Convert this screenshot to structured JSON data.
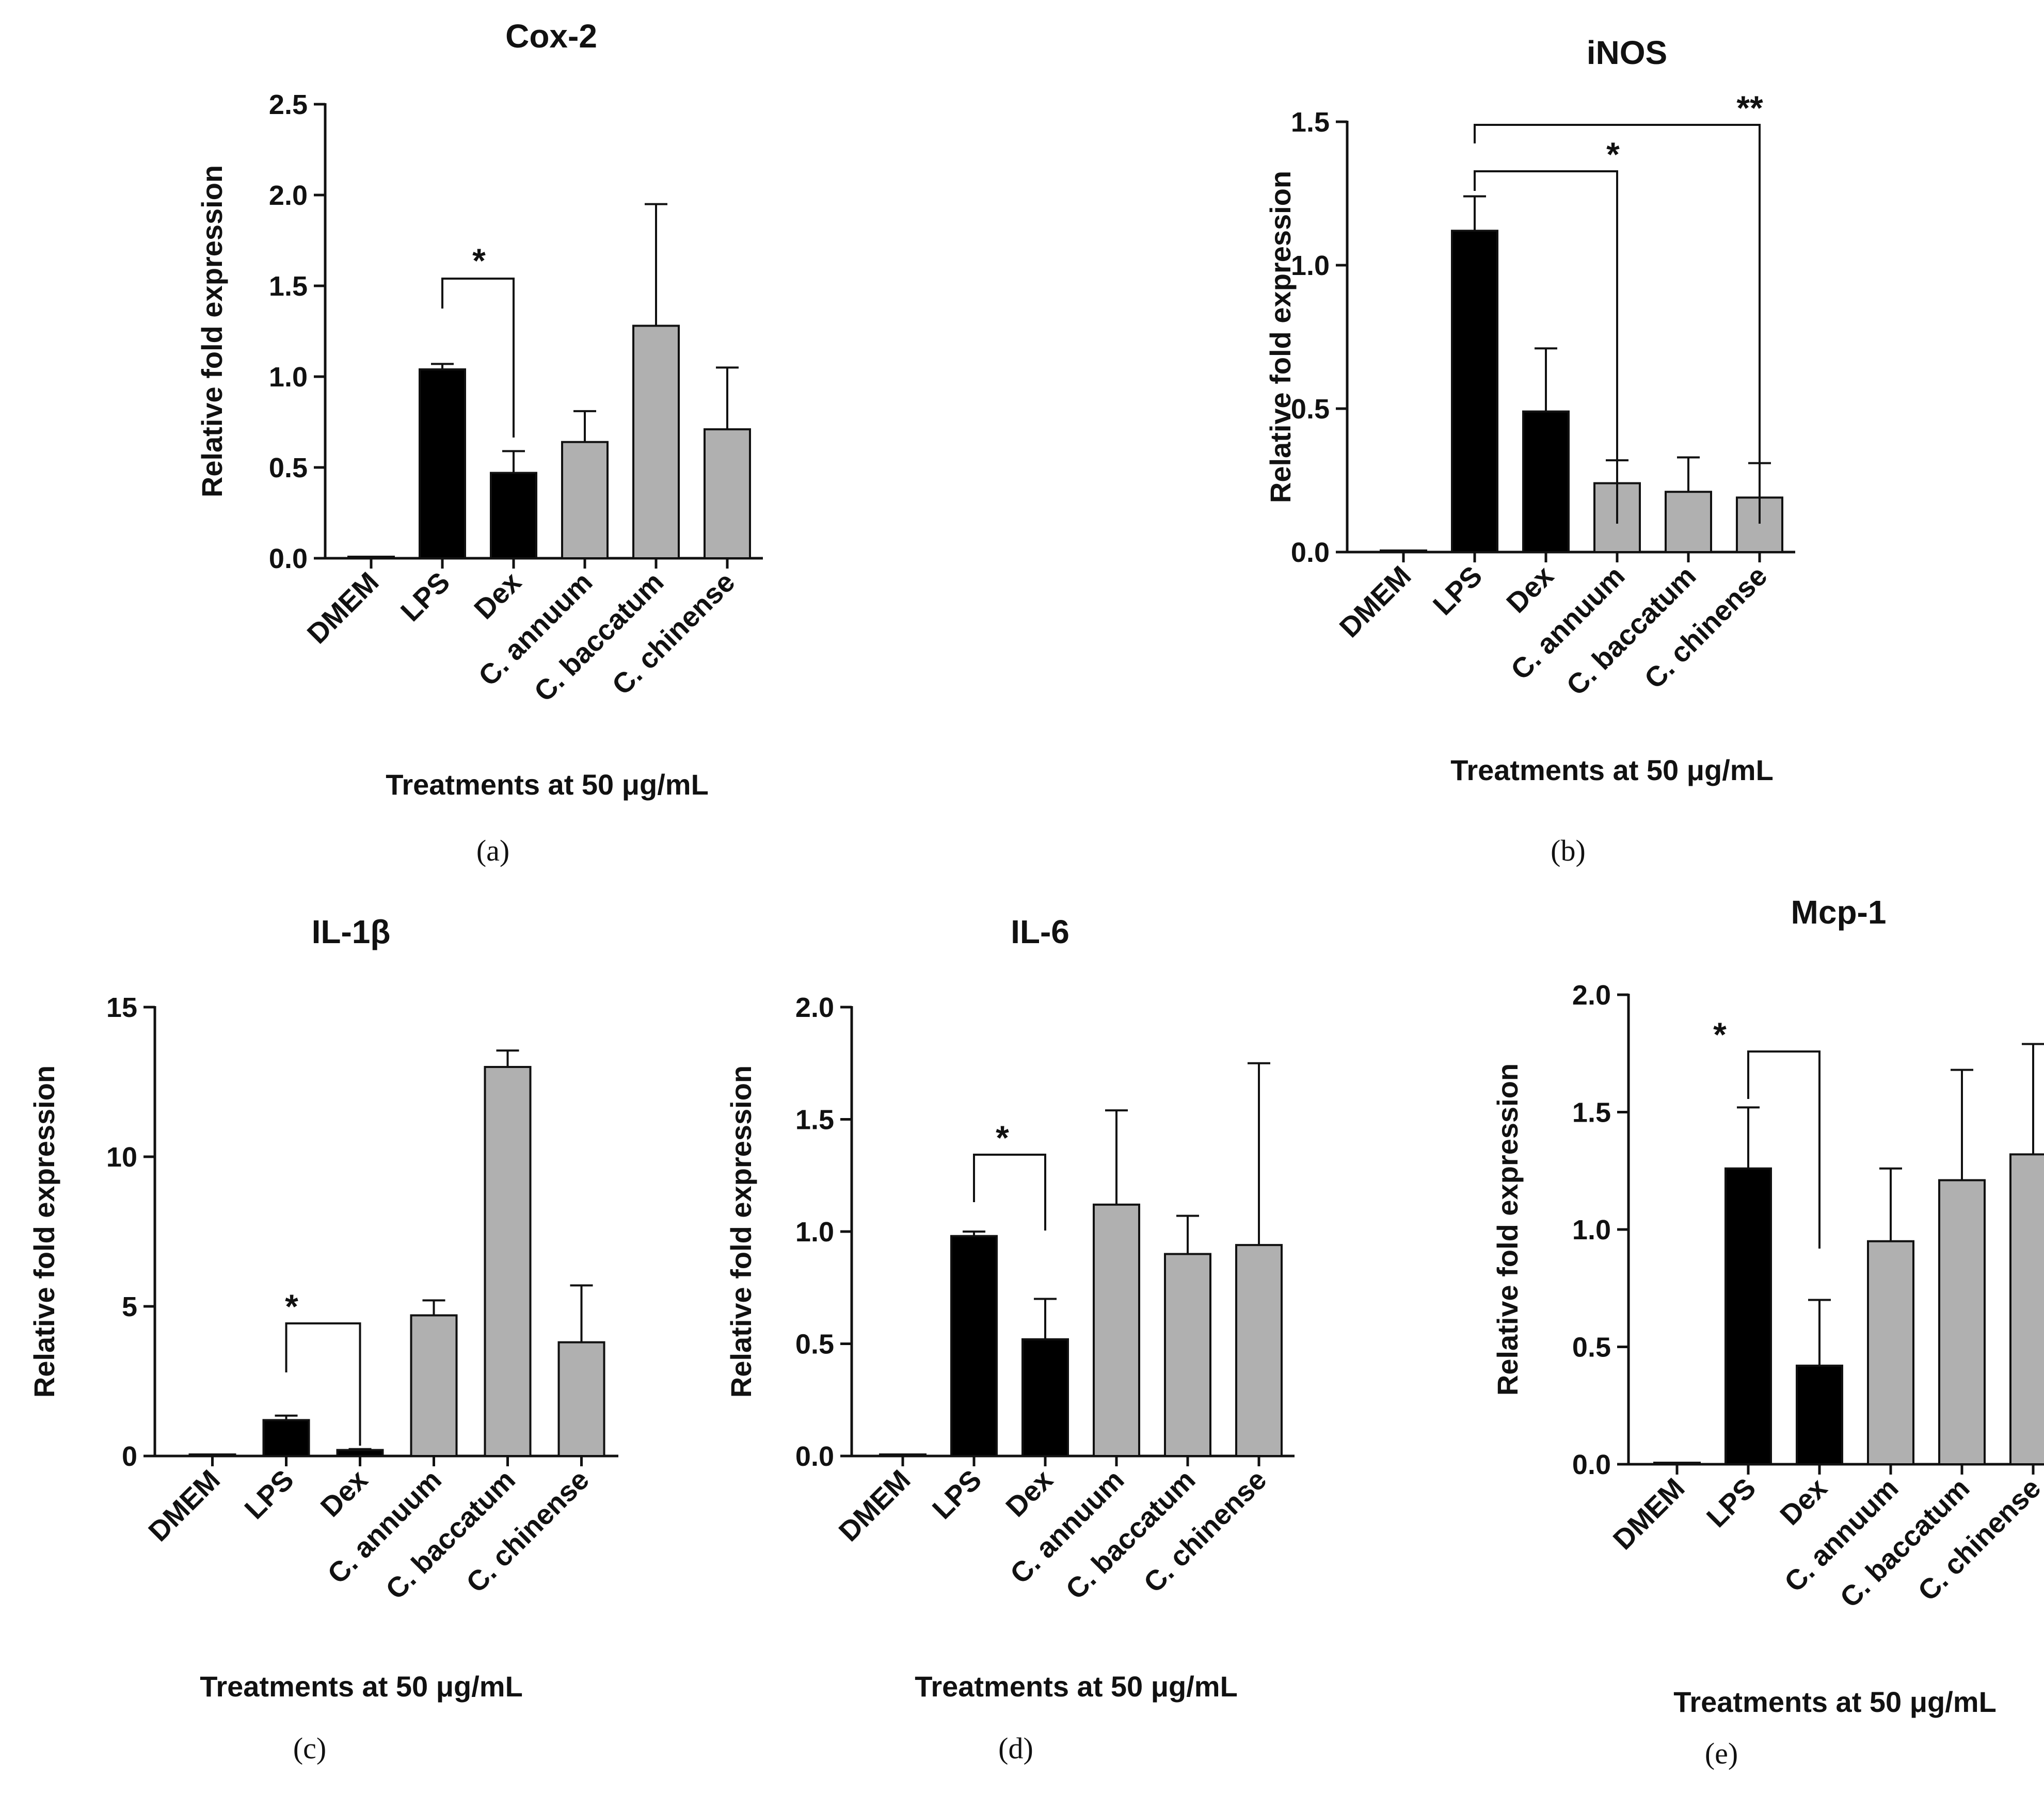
{
  "chart_data": [
    {
      "panel": "(a)",
      "type": "bar",
      "title": "Cox-2",
      "ylabel": "Relative fold expression",
      "xlabel": "Treatments at 50 μg/mL",
      "ylim": [
        0,
        2.5
      ],
      "yticks": [
        "0.0",
        "0.5",
        "1.0",
        "1.5",
        "2.0",
        "2.5"
      ],
      "categories": [
        "DMEM",
        "LPS",
        "Dex",
        "C. annuum",
        "C. baccatum",
        "C. chinense"
      ],
      "values": [
        0,
        1.04,
        0.47,
        0.64,
        1.28,
        0.71
      ],
      "errors": [
        0,
        0.03,
        0.12,
        0.17,
        0.67,
        0.34
      ],
      "significance": [
        {
          "label": "*"
        }
      ]
    },
    {
      "panel": "(b)",
      "type": "bar",
      "title": "iNOS",
      "ylabel": "Relative fold expression",
      "xlabel": "Treatments at 50 μg/mL",
      "ylim": [
        0,
        1.5
      ],
      "yticks": [
        "0.0",
        "0.5",
        "1.0",
        "1.5"
      ],
      "categories": [
        "DMEM",
        "LPS",
        "Dex",
        "C. annuum",
        "C. baccatum",
        "C. chinense"
      ],
      "values": [
        0.005,
        1.12,
        0.49,
        0.24,
        0.21,
        0.19
      ],
      "errors": [
        0,
        0.12,
        0.22,
        0.08,
        0.12,
        0.12
      ],
      "significance": [
        {
          "label": "*"
        },
        {
          "label": "**"
        }
      ]
    },
    {
      "panel": "(c)",
      "type": "bar",
      "title": "IL-1β",
      "ylabel": "Relative fold expression",
      "xlabel": "Treatments at 50 μg/mL",
      "ylim": [
        0,
        15
      ],
      "yticks": [
        "0",
        "5",
        "10",
        "15"
      ],
      "categories": [
        "DMEM",
        "LPS",
        "Dex",
        "C. annuum",
        "C. baccatum",
        "C. chinense"
      ],
      "values": [
        0,
        1.2,
        0.2,
        4.7,
        13.0,
        3.8
      ],
      "errors": [
        0,
        0.15,
        0.03,
        0.5,
        0.55,
        1.9
      ],
      "significance": [
        {
          "label": "*"
        }
      ]
    },
    {
      "panel": "(d)",
      "type": "bar",
      "title": "IL-6",
      "ylabel": "Relative fold expression",
      "xlabel": "Treatments at 50 μg/mL",
      "ylim": [
        0,
        2.0
      ],
      "yticks": [
        "0.0",
        "0.5",
        "1.0",
        "1.5",
        "2.0"
      ],
      "categories": [
        "DMEM",
        "LPS",
        "Dex",
        "C. annuum",
        "C. baccatum",
        "C. chinense"
      ],
      "values": [
        0,
        0.98,
        0.52,
        1.12,
        0.9,
        0.94
      ],
      "errors": [
        0,
        0.02,
        0.18,
        0.42,
        0.17,
        0.81
      ],
      "significance": [
        {
          "label": "*"
        }
      ]
    },
    {
      "panel": "(e)",
      "type": "bar",
      "title": "Mcp-1",
      "ylabel": "Relative fold expression",
      "xlabel": "Treatments at 50 μg/mL",
      "ylim": [
        0,
        2.0
      ],
      "yticks": [
        "0.0",
        "0.5",
        "1.0",
        "1.5",
        "2.0"
      ],
      "categories": [
        "DMEM",
        "LPS",
        "Dex",
        "C. annuum",
        "C. baccatum",
        "C. chinense"
      ],
      "values": [
        0.005,
        1.26,
        0.42,
        0.95,
        1.21,
        1.32
      ],
      "errors": [
        0,
        0.26,
        0.28,
        0.31,
        0.47,
        0.47
      ],
      "significance": [
        {
          "label": "*"
        }
      ]
    }
  ],
  "colors": {
    "control_bar": "#000000",
    "extract_bar": "#b0b0b0",
    "axis": "#111111"
  }
}
